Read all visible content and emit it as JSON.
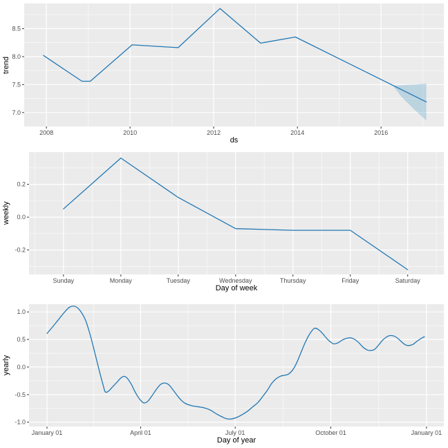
{
  "colors": {
    "panel_background": "#ebebeb",
    "grid_major": "#ffffff",
    "grid_minor": "#f7f7f7",
    "line": "#2077b4",
    "band_fill": "#0072B2",
    "band_opacity": 0.2,
    "tick_label": "#4d4d4d",
    "tick_mark": "#333333",
    "axis_title": "#000000"
  },
  "chart_data": [
    {
      "type": "line",
      "name": "trend",
      "ylabel": "trend",
      "xlabel": "ds",
      "xlim": [
        2007.47,
        2017.5
      ],
      "ylim": [
        6.75,
        8.95
      ],
      "grid": true,
      "xticks": {
        "values": [
          2008,
          2010,
          2012,
          2014,
          2016
        ],
        "labels": [
          "2008",
          "2010",
          "2012",
          "2014",
          "2016"
        ]
      },
      "yticks": {
        "values": [
          7.0,
          7.5,
          8.0,
          8.5
        ],
        "labels": [
          "7.0",
          "7.5",
          "8.0",
          "8.5"
        ]
      },
      "xminor": [
        2009,
        2011,
        2013,
        2015,
        2017
      ],
      "yminor": [
        7.25,
        7.75,
        8.25,
        8.75
      ],
      "smooth": false,
      "series": {
        "x": [
          2007.93,
          2008.85,
          2009.05,
          2010.05,
          2011.15,
          2012.15,
          2013.12,
          2013.95,
          2017.08
        ],
        "y": [
          8.02,
          7.56,
          7.56,
          8.21,
          8.16,
          8.86,
          8.24,
          8.35,
          7.19
        ]
      },
      "band": {
        "x": [
          2016.28,
          2016.5,
          2016.8,
          2017.08
        ],
        "upper": [
          7.48,
          7.49,
          7.5,
          7.52
        ],
        "lower": [
          7.48,
          7.27,
          7.05,
          6.86
        ]
      }
    },
    {
      "type": "line",
      "name": "weekly",
      "ylabel": "weekly",
      "xlabel": "Day of week",
      "xlim": [
        -0.6,
        6.63
      ],
      "ylim": [
        -0.349,
        0.396
      ],
      "grid": true,
      "categories": [
        "Sunday",
        "Monday",
        "Tuesday",
        "Wednesday",
        "Thursday",
        "Friday",
        "Saturday"
      ],
      "xticks": {
        "values": [
          0,
          1,
          2,
          3,
          4,
          5,
          6
        ],
        "labels": [
          "Sunday",
          "Monday",
          "Tuesday",
          "Wednesday",
          "Thursday",
          "Friday",
          "Saturday"
        ]
      },
      "yticks": {
        "values": [
          -0.2,
          0.0,
          0.2
        ],
        "labels": [
          "-0.2",
          "0.0",
          "0.2"
        ]
      },
      "xminor": [
        -0.5,
        0.5,
        1.5,
        2.5,
        3.5,
        4.5,
        5.5,
        6.5
      ],
      "yminor": [
        -0.3,
        -0.1,
        0.1,
        0.3
      ],
      "smooth": false,
      "series": {
        "x": [
          0,
          1,
          2,
          3,
          4,
          5,
          6
        ],
        "y": [
          0.05,
          0.36,
          0.12,
          -0.07,
          -0.08,
          -0.08,
          -0.32
        ]
      }
    },
    {
      "type": "line",
      "name": "yearly",
      "ylabel": "yearly",
      "xlabel": "Day of year",
      "xlim": [
        -16.3,
        382.7
      ],
      "ylim": [
        -1.08,
        1.14
      ],
      "grid": true,
      "xticks": {
        "values": [
          1,
          91,
          182,
          274,
          366
        ],
        "labels": [
          "January 01",
          "April 01",
          "July 01",
          "October 01",
          "January 01"
        ]
      },
      "yticks": {
        "values": [
          -1.0,
          -0.5,
          0.0,
          0.5,
          1.0
        ],
        "labels": [
          "-1.0",
          "-0.5",
          "0.0",
          "0.5",
          "1.0"
        ]
      },
      "xminor": [
        46,
        136.5,
        228,
        320
      ],
      "yminor": [
        -0.75,
        -0.25,
        0.25,
        0.75
      ],
      "smooth": true,
      "series": {
        "x": [
          1,
          6,
          12,
          18,
          23,
          28,
          33,
          38,
          43,
          48,
          52,
          55,
          57,
          60,
          64,
          68,
          72,
          75,
          78,
          82,
          86,
          90,
          94,
          98,
          102,
          106,
          110,
          114,
          118,
          122,
          126,
          130,
          134,
          140,
          146,
          152,
          158,
          164,
          169,
          174,
          179,
          184,
          189,
          194,
          199,
          204,
          209,
          213,
          217,
          221,
          225,
          229,
          233,
          237,
          241,
          245,
          249,
          253,
          258,
          262,
          266,
          270,
          274,
          277,
          281,
          285,
          289,
          293,
          297,
          301,
          305,
          309,
          312,
          316,
          320,
          324,
          328,
          331,
          335,
          339,
          343,
          346,
          349,
          353,
          357,
          361,
          364
        ],
        "y": [
          0.61,
          0.72,
          0.86,
          1.0,
          1.09,
          1.1,
          1.02,
          0.85,
          0.55,
          0.18,
          -0.12,
          -0.33,
          -0.45,
          -0.44,
          -0.36,
          -0.28,
          -0.2,
          -0.17,
          -0.2,
          -0.31,
          -0.46,
          -0.58,
          -0.65,
          -0.62,
          -0.52,
          -0.41,
          -0.32,
          -0.29,
          -0.32,
          -0.41,
          -0.51,
          -0.6,
          -0.66,
          -0.7,
          -0.72,
          -0.74,
          -0.78,
          -0.85,
          -0.9,
          -0.94,
          -0.94,
          -0.91,
          -0.86,
          -0.8,
          -0.72,
          -0.64,
          -0.52,
          -0.42,
          -0.3,
          -0.22,
          -0.17,
          -0.15,
          -0.13,
          -0.06,
          0.07,
          0.25,
          0.43,
          0.58,
          0.7,
          0.68,
          0.61,
          0.52,
          0.45,
          0.42,
          0.44,
          0.49,
          0.52,
          0.53,
          0.5,
          0.44,
          0.36,
          0.31,
          0.3,
          0.32,
          0.4,
          0.49,
          0.55,
          0.57,
          0.56,
          0.51,
          0.44,
          0.4,
          0.39,
          0.41,
          0.47,
          0.52,
          0.55
        ]
      }
    }
  ]
}
